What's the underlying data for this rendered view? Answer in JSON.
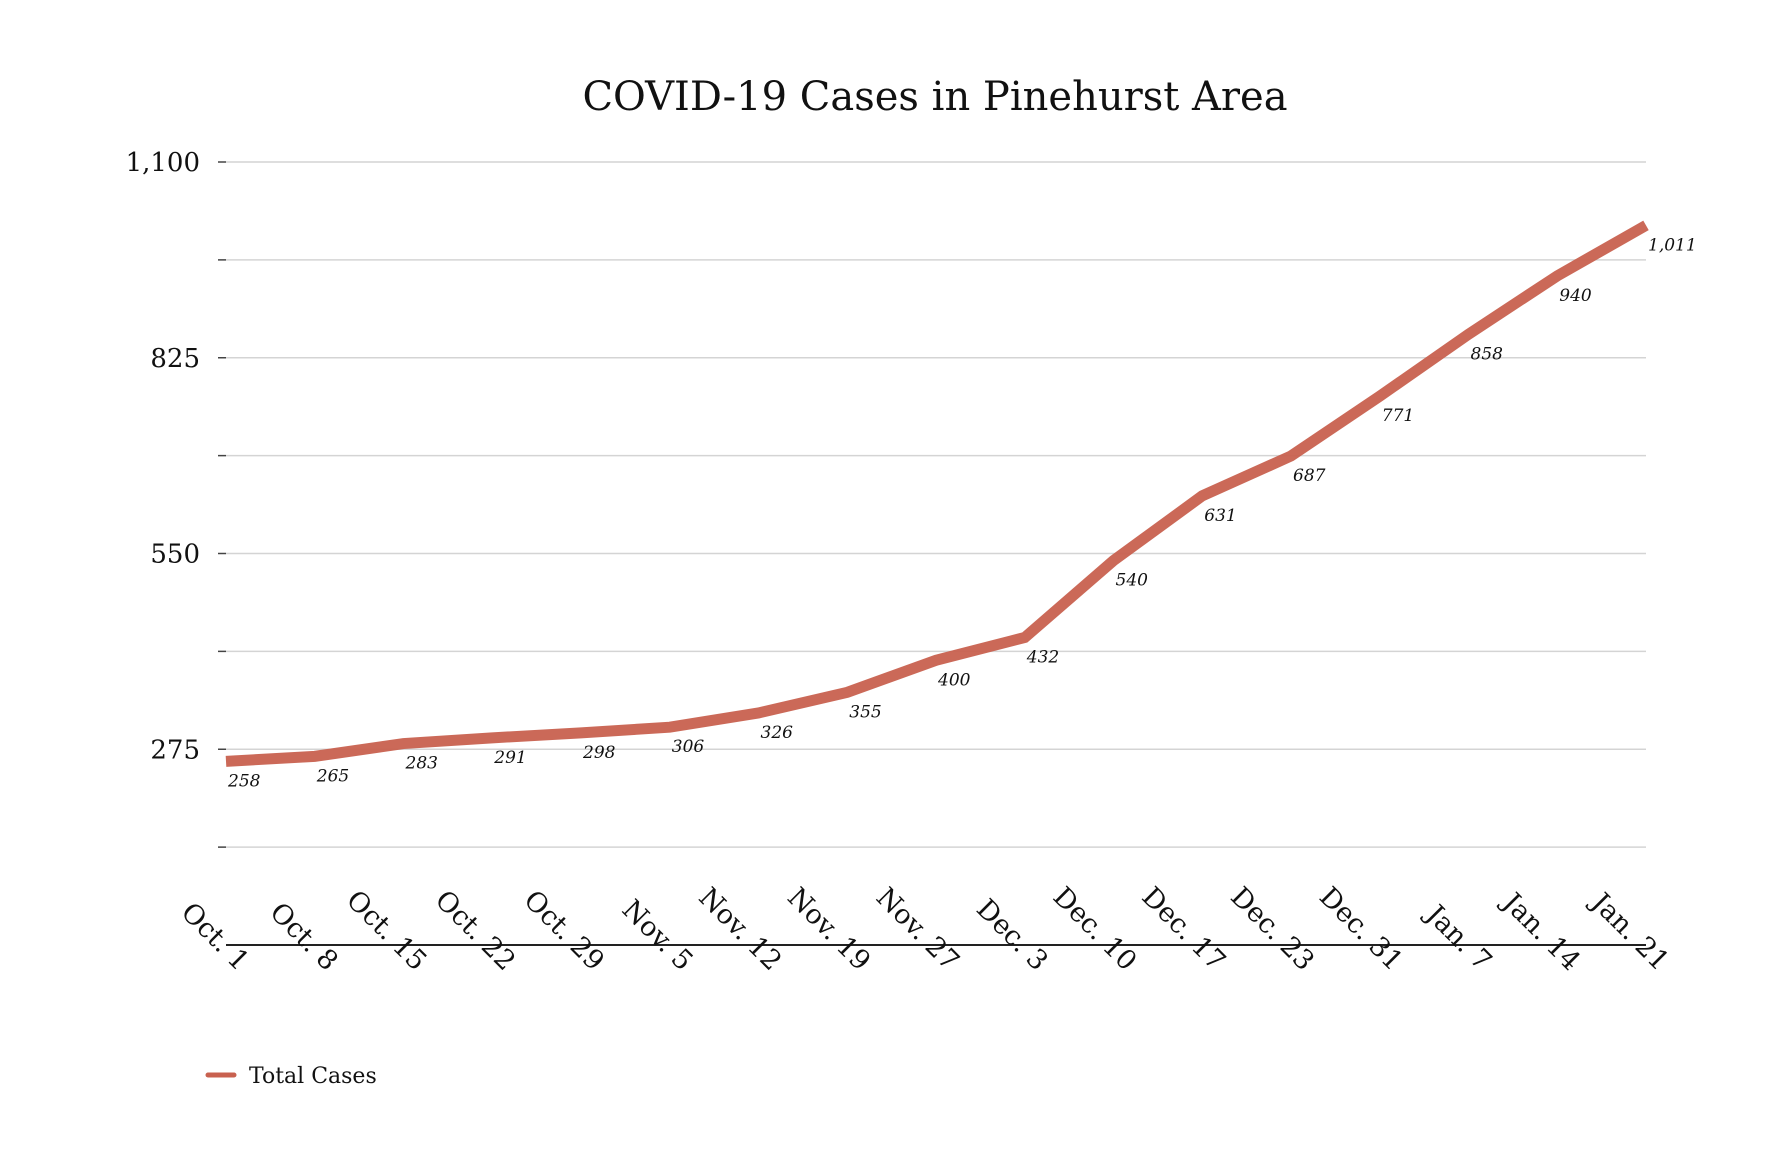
{
  "chart_data": {
    "type": "line",
    "title": "COVID-19 Cases in Pinehurst Area",
    "xlabel": "",
    "ylabel": "",
    "categories": [
      "Oct. 1",
      "Oct. 8",
      "Oct. 15",
      "Oct. 22",
      "Oct. 29",
      "Nov. 5",
      "Nov. 12",
      "Nov. 19",
      "Nov. 27",
      "Dec. 3",
      "Dec. 10",
      "Dec. 17",
      "Dec. 23",
      "Dec. 31",
      "Jan. 7",
      "Jan. 14",
      "Jan. 21"
    ],
    "series": [
      {
        "name": "Total Cases",
        "values": [
          258,
          265,
          283,
          291,
          298,
          306,
          326,
          355,
          400,
          432,
          540,
          631,
          687,
          771,
          858,
          940,
          1011
        ],
        "value_labels": [
          "258",
          "265",
          "283",
          "291",
          "298",
          "306",
          "326",
          "355",
          "400",
          "432",
          "540",
          "631",
          "687",
          "771",
          "858",
          "940",
          "1,011"
        ],
        "color": "#c8614f"
      }
    ],
    "ylim": [
      0,
      1100
    ],
    "y_ticks": [
      {
        "value": 137.5,
        "label": ""
      },
      {
        "value": 275,
        "label": "275"
      },
      {
        "value": 412.5,
        "label": ""
      },
      {
        "value": 550,
        "label": "550"
      },
      {
        "value": 687.5,
        "label": ""
      },
      {
        "value": 825,
        "label": "825"
      },
      {
        "value": 962.5,
        "label": ""
      },
      {
        "value": 1100,
        "label": "1,100"
      }
    ],
    "grid": true,
    "legend_position": "bottom-left",
    "colors": {
      "line": "#c8614f",
      "grid": "#d4d4d4",
      "axis": "#222222",
      "text": "#111111"
    }
  }
}
